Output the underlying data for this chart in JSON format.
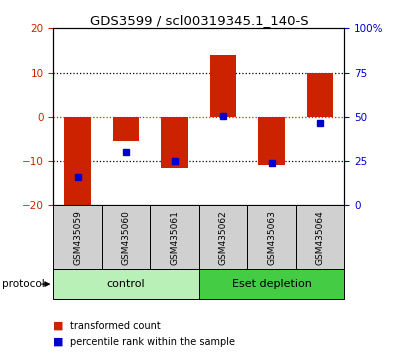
{
  "title": "GDS3599 / scl00319345.1_140-S",
  "samples": [
    "GSM435059",
    "GSM435060",
    "GSM435061",
    "GSM435062",
    "GSM435063",
    "GSM435064"
  ],
  "red_bars": [
    -20.5,
    -5.5,
    -11.5,
    14.0,
    -11.0,
    10.0
  ],
  "blue_squares": [
    -13.5,
    -8.0,
    -10.0,
    0.2,
    -10.5,
    -1.5
  ],
  "ylim_left": [
    -20,
    20
  ],
  "ylim_right": [
    0,
    100
  ],
  "yticks_left": [
    -20,
    -10,
    0,
    10,
    20
  ],
  "yticks_right": [
    0,
    25,
    50,
    75,
    100
  ],
  "ytick_labels_right": [
    "0",
    "25",
    "50",
    "75",
    "100%"
  ],
  "hlines": [
    10,
    0,
    -10
  ],
  "groups": [
    {
      "label": "control",
      "samples": [
        0,
        1,
        2
      ],
      "color": "#b8f0b8"
    },
    {
      "label": "Eset depletion",
      "samples": [
        3,
        4,
        5
      ],
      "color": "#44cc44"
    }
  ],
  "sample_box_color": "#d0d0d0",
  "red_color": "#cc2200",
  "blue_color": "#0000cc",
  "zero_line_color": "#cc2200",
  "grid_color": "#000000",
  "protocol_label": "protocol",
  "legend_red": "transformed count",
  "legend_blue": "percentile rank within the sample",
  "bar_width": 0.55,
  "title_fontsize": 9.5,
  "tick_fontsize": 7.5,
  "sample_fontsize": 6.5,
  "group_fontsize": 8,
  "legend_fontsize": 7
}
